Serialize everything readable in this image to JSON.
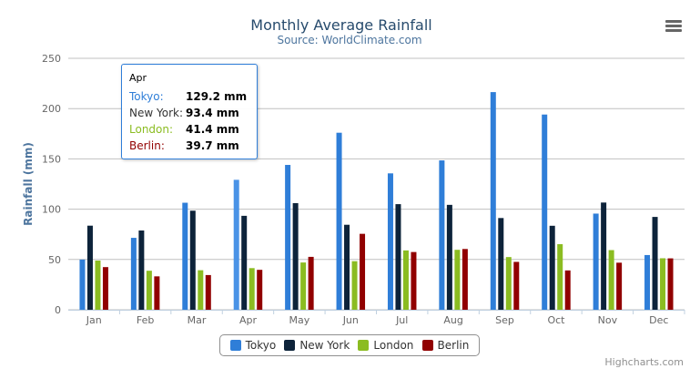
{
  "chart_data": {
    "type": "bar",
    "title": "Monthly Average Rainfall",
    "subtitle": "Source: WorldClimate.com",
    "xlabel": "",
    "ylabel": "Rainfall (mm)",
    "ylim": [
      0,
      250
    ],
    "yticks": [
      "0",
      "50",
      "100",
      "150",
      "200",
      "250"
    ],
    "grid": true,
    "legend_position": "bottom",
    "categories": [
      "Jan",
      "Feb",
      "Mar",
      "Apr",
      "May",
      "Jun",
      "Jul",
      "Aug",
      "Sep",
      "Oct",
      "Nov",
      "Dec"
    ],
    "series": [
      {
        "name": "Tokyo",
        "color": "#2f7ed8",
        "values": [
          49.9,
          71.5,
          106.4,
          129.2,
          144.0,
          176.0,
          135.6,
          148.5,
          216.4,
          194.1,
          95.6,
          54.4
        ]
      },
      {
        "name": "New York",
        "color": "#0d233a",
        "values": [
          83.6,
          78.8,
          98.5,
          93.4,
          106.0,
          84.5,
          105.0,
          104.3,
          91.2,
          83.5,
          106.6,
          92.3
        ]
      },
      {
        "name": "London",
        "color": "#8bbc21",
        "values": [
          48.9,
          38.8,
          39.3,
          41.4,
          47.0,
          48.3,
          59.0,
          59.6,
          52.4,
          65.2,
          59.3,
          51.2
        ]
      },
      {
        "name": "Berlin",
        "color": "#910000",
        "values": [
          42.4,
          33.2,
          34.5,
          39.7,
          52.6,
          75.5,
          57.4,
          60.4,
          47.6,
          39.1,
          46.8,
          51.1
        ]
      }
    ]
  },
  "tooltip": {
    "header": "Apr",
    "rows": [
      {
        "name": "Tokyo:",
        "value": "129.2 mm",
        "color": "#2f7ed8"
      },
      {
        "name": "New York:",
        "value": "93.4 mm",
        "color": "#333333"
      },
      {
        "name": "London:",
        "value": "41.4 mm",
        "color": "#8bbc21"
      },
      {
        "name": "Berlin:",
        "value": "39.7 mm",
        "color": "#910000"
      }
    ]
  },
  "menu_icon": "hamburger-menu-icon",
  "credits": "Highcharts.com"
}
